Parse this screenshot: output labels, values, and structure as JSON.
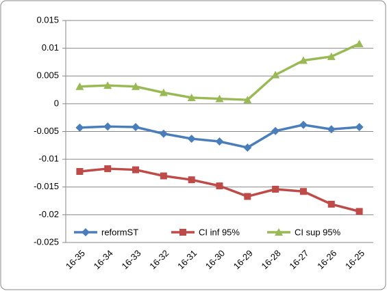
{
  "chart_data": {
    "type": "line",
    "categories": [
      "16-35",
      "16-34",
      "16-33",
      "16-32",
      "16-31",
      "16-30",
      "16-29",
      "16-28",
      "16-27",
      "16-26",
      "16-25"
    ],
    "series": [
      {
        "name": "reformST",
        "color": "#4a7ebb",
        "marker": "diamond",
        "values": [
          -0.0043,
          -0.0041,
          -0.0042,
          -0.0054,
          -0.0063,
          -0.0068,
          -0.0079,
          -0.0049,
          -0.0038,
          -0.0046,
          -0.0042
        ]
      },
      {
        "name": "CI inf 95%",
        "color": "#be4b48",
        "marker": "square",
        "values": [
          -0.0122,
          -0.0117,
          -0.0119,
          -0.013,
          -0.0137,
          -0.0148,
          -0.0167,
          -0.0154,
          -0.0158,
          -0.0181,
          -0.0194
        ]
      },
      {
        "name": "CI sup 95%",
        "color": "#98b954",
        "marker": "triangle",
        "values": [
          0.0031,
          0.0033,
          0.0031,
          0.002,
          0.0011,
          0.0009,
          0.0007,
          0.0052,
          0.0078,
          0.0085,
          0.0108
        ]
      }
    ],
    "ylim": [
      -0.025,
      0.015
    ],
    "yticks": [
      -0.025,
      -0.02,
      -0.015,
      -0.01,
      -0.005,
      0,
      0.005,
      0.01,
      0.015
    ],
    "grid": true,
    "legend": "bottom"
  }
}
